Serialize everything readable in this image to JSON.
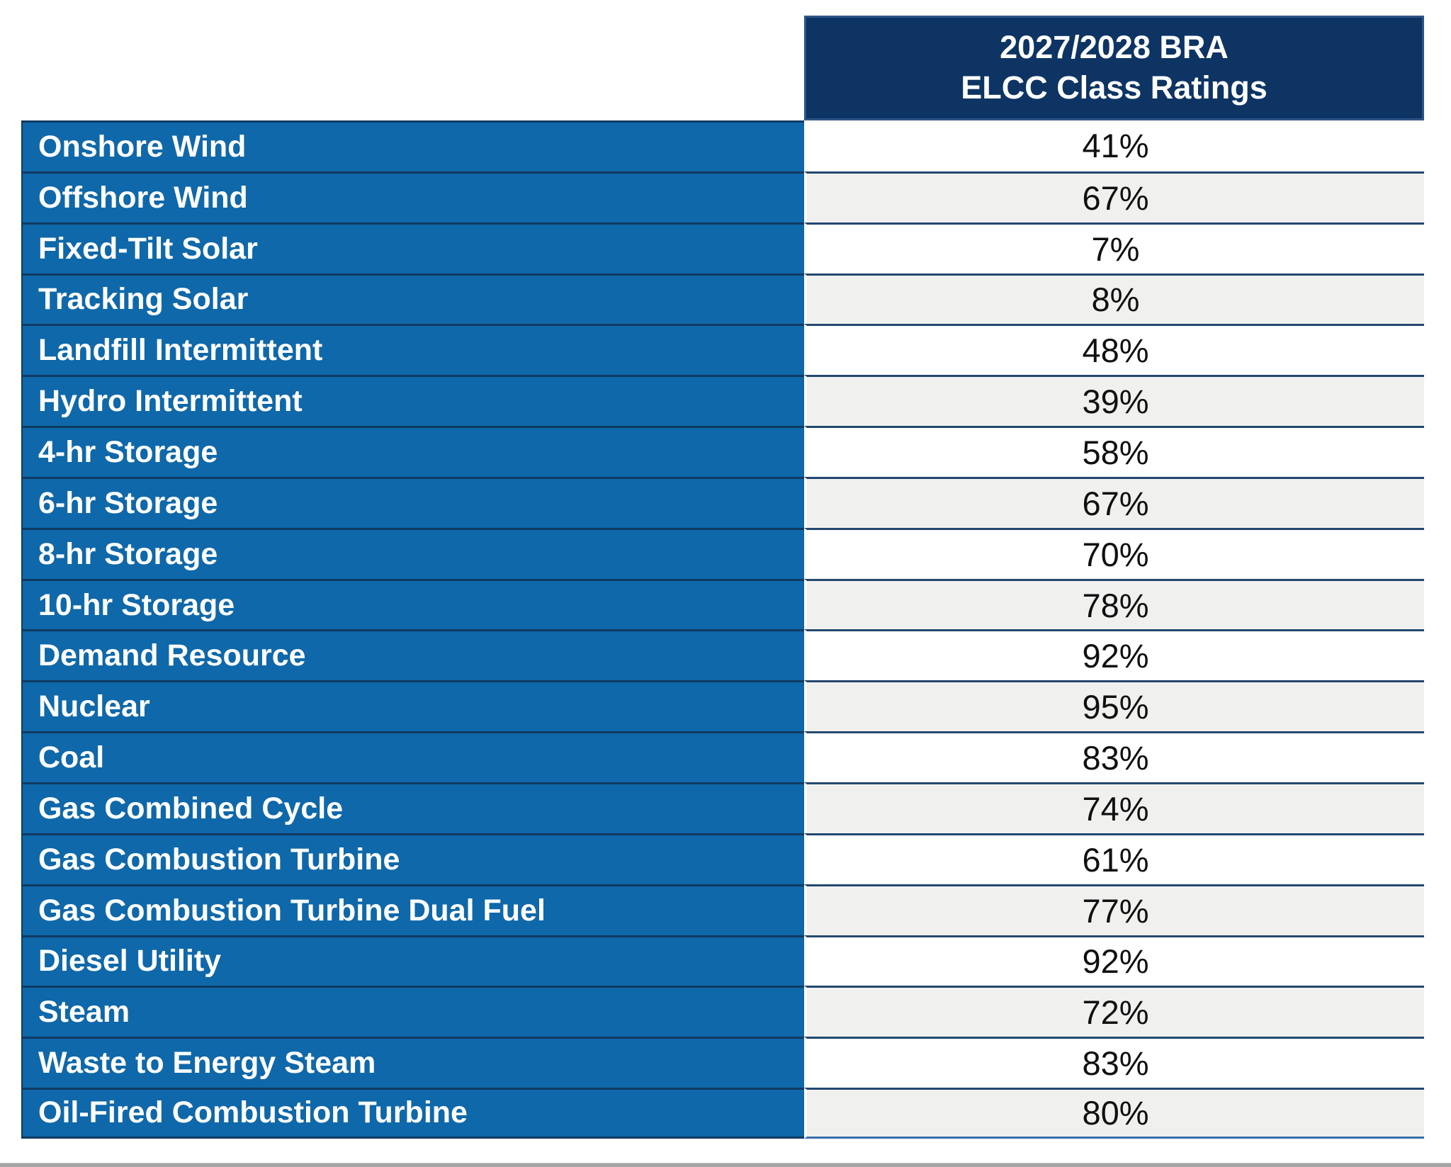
{
  "table": {
    "header": {
      "line1": "2027/2028 BRA",
      "line2": "ELCC Class Ratings"
    },
    "rows": [
      {
        "label": "Onshore Wind",
        "value": "41%"
      },
      {
        "label": "Offshore Wind",
        "value": "67%"
      },
      {
        "label": "Fixed-Tilt Solar",
        "value": "7%"
      },
      {
        "label": "Tracking Solar",
        "value": "8%"
      },
      {
        "label": "Landfill Intermittent",
        "value": "48%"
      },
      {
        "label": "Hydro Intermittent",
        "value": "39%"
      },
      {
        "label": "4-hr Storage",
        "value": "58%"
      },
      {
        "label": "6-hr Storage",
        "value": "67%"
      },
      {
        "label": "8-hr Storage",
        "value": "70%"
      },
      {
        "label": "10-hr Storage",
        "value": "78%"
      },
      {
        "label": "Demand Resource",
        "value": "92%"
      },
      {
        "label": "Nuclear",
        "value": "95%"
      },
      {
        "label": "Coal",
        "value": "83%"
      },
      {
        "label": "Gas Combined Cycle",
        "value": "74%"
      },
      {
        "label": "Gas Combustion Turbine",
        "value": "61%"
      },
      {
        "label": "Gas Combustion Turbine Dual Fuel",
        "value": "77%"
      },
      {
        "label": "Diesel Utility",
        "value": "92%"
      },
      {
        "label": "Steam",
        "value": "72%"
      },
      {
        "label": "Waste to Energy Steam",
        "value": "83%"
      },
      {
        "label": "Oil-Fired Combustion Turbine",
        "value": "80%"
      }
    ]
  },
  "chart_data": {
    "type": "table",
    "title": "2027/2028 BRA ELCC Class Ratings",
    "columns": [
      "",
      "2027/2028 BRA ELCC Class Ratings"
    ],
    "categories": [
      "Onshore Wind",
      "Offshore Wind",
      "Fixed-Tilt Solar",
      "Tracking Solar",
      "Landfill Intermittent",
      "Hydro Intermittent",
      "4-hr Storage",
      "6-hr Storage",
      "8-hr Storage",
      "10-hr Storage",
      "Demand Resource",
      "Nuclear",
      "Coal",
      "Gas Combined Cycle",
      "Gas Combustion Turbine",
      "Gas Combustion Turbine Dual Fuel",
      "Diesel Utility",
      "Steam",
      "Waste to Energy Steam",
      "Oil-Fired Combustion Turbine"
    ],
    "values_percent": [
      41,
      67,
      7,
      8,
      48,
      39,
      58,
      67,
      70,
      78,
      92,
      95,
      83,
      74,
      61,
      77,
      92,
      72,
      83,
      80
    ],
    "layout": {
      "zebra_striping": true,
      "label_column_style": "blue background, white bold text",
      "header_style": "dark navy background, white bold text, right column only"
    }
  },
  "colors": {
    "header_bg": "#0d3463",
    "header_border": "#2d5488",
    "label_bg": "#0f68a9",
    "label_divider": "#103a63",
    "value_divider": "#24476f",
    "row_white": "#ffffff",
    "row_gray": "#f0f1ef",
    "bottom_bar": "#a6a6a6",
    "value_text": "#101010"
  }
}
